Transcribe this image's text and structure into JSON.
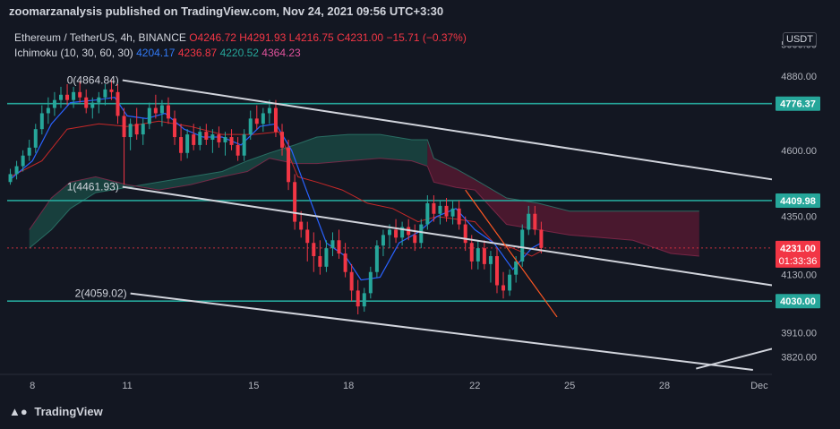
{
  "header": {
    "publisher_text": "zoomarzanalysis published on TradingView.com, Nov 24, 2021 09:56 UTC+3:30"
  },
  "legend": {
    "symbol": "Ethereum / TetherUS, 4h, BINANCE",
    "open": "O4246.72",
    "high": "H4291.93",
    "low": "L4216.75",
    "close": "C4231.00",
    "change": "−15.71 (−0.37%)",
    "indicator": "Ichimoku (10, 30, 60, 30)",
    "ind_v1": "4204.17",
    "ind_v2": "4236.87",
    "ind_v3": "4220.52",
    "ind_v4": "4364.23"
  },
  "axis": {
    "currency_badge": "USDT"
  },
  "footer": {
    "logo_text": "TradingView"
  },
  "colors": {
    "background": "#131722",
    "up": "#26a69a",
    "down": "#f23645",
    "tenkan": "#2962ff",
    "kijun": "#b71c1c",
    "cloud_bull": "#1b4d47",
    "cloud_bear": "#5c1a33",
    "level_line": "#26a69a",
    "channel_line": "#d1d4dc",
    "current_price": "#f23645"
  },
  "chart_data": {
    "type": "candlestick",
    "ylim": [
      3760,
      5080
    ],
    "y_ticks": [
      "5000.00",
      "4880.00",
      "4600.00",
      "4350.00",
      "4130.00",
      "3910.00",
      "3820.00"
    ],
    "x_ticks": [
      "8",
      "11",
      "15",
      "18",
      "22",
      "25",
      "28",
      "Dec"
    ],
    "x_tick_days": [
      8,
      11,
      15,
      18,
      22,
      25,
      28,
      31
    ],
    "x_range_days": [
      7.2,
      31.4
    ],
    "horizontal_levels": [
      4776.37,
      4409.98,
      4030.0
    ],
    "level_labels": [
      "4776.37",
      "4409.98",
      "4030.00"
    ],
    "current_price": 4231.0,
    "current_price_label": "4231.00",
    "countdown_label": "01:33:36",
    "fib_labels": [
      {
        "text": "0(4864.84)",
        "day": 10.85,
        "price": 4864.84
      },
      {
        "text": "1(4461.93)",
        "day": 10.85,
        "price": 4461.93
      },
      {
        "text": "2(4059.02)",
        "day": 11.1,
        "price": 4059.02
      }
    ],
    "channel_lines": [
      {
        "from": [
          10.85,
          4864.84
        ],
        "to": [
          31.4,
          4490
        ]
      },
      {
        "from": [
          10.85,
          4461.93
        ],
        "to": [
          31.4,
          4090
        ]
      },
      {
        "from": [
          11.1,
          4059.02
        ],
        "to": [
          30.8,
          3770
        ]
      },
      {
        "from": [
          29.0,
          3775
        ],
        "to": [
          31.4,
          3850
        ]
      }
    ],
    "orange_line": {
      "from": [
        21.7,
        4450
      ],
      "to": [
        24.6,
        3970
      ]
    },
    "candles": [
      {
        "day": 7.3,
        "o": 4480,
        "h": 4530,
        "l": 4470,
        "c": 4510
      },
      {
        "day": 7.5,
        "o": 4510,
        "h": 4560,
        "l": 4490,
        "c": 4540
      },
      {
        "day": 7.7,
        "o": 4540,
        "h": 4600,
        "l": 4520,
        "c": 4580
      },
      {
        "day": 7.9,
        "o": 4580,
        "h": 4640,
        "l": 4560,
        "c": 4610
      },
      {
        "day": 8.1,
        "o": 4610,
        "h": 4700,
        "l": 4590,
        "c": 4680
      },
      {
        "day": 8.3,
        "o": 4680,
        "h": 4770,
        "l": 4660,
        "c": 4740
      },
      {
        "day": 8.5,
        "o": 4740,
        "h": 4800,
        "l": 4700,
        "c": 4760
      },
      {
        "day": 8.7,
        "o": 4760,
        "h": 4820,
        "l": 4730,
        "c": 4790
      },
      {
        "day": 8.9,
        "o": 4790,
        "h": 4840,
        "l": 4760,
        "c": 4810
      },
      {
        "day": 9.1,
        "o": 4810,
        "h": 4850,
        "l": 4770,
        "c": 4790
      },
      {
        "day": 9.3,
        "o": 4790,
        "h": 4840,
        "l": 4760,
        "c": 4820
      },
      {
        "day": 9.5,
        "o": 4820,
        "h": 4860,
        "l": 4780,
        "c": 4800
      },
      {
        "day": 9.7,
        "o": 4800,
        "h": 4830,
        "l": 4740,
        "c": 4760
      },
      {
        "day": 9.9,
        "o": 4760,
        "h": 4800,
        "l": 4720,
        "c": 4780
      },
      {
        "day": 10.1,
        "o": 4780,
        "h": 4820,
        "l": 4740,
        "c": 4800
      },
      {
        "day": 10.3,
        "o": 4800,
        "h": 4850,
        "l": 4770,
        "c": 4830
      },
      {
        "day": 10.5,
        "o": 4830,
        "h": 4865,
        "l": 4790,
        "c": 4820
      },
      {
        "day": 10.7,
        "o": 4820,
        "h": 4850,
        "l": 4700,
        "c": 4730
      },
      {
        "day": 10.9,
        "o": 4730,
        "h": 4760,
        "l": 4470,
        "c": 4650
      },
      {
        "day": 11.1,
        "o": 4650,
        "h": 4720,
        "l": 4600,
        "c": 4700
      },
      {
        "day": 11.3,
        "o": 4700,
        "h": 4760,
        "l": 4640,
        "c": 4660
      },
      {
        "day": 11.5,
        "o": 4660,
        "h": 4720,
        "l": 4620,
        "c": 4700
      },
      {
        "day": 11.7,
        "o": 4700,
        "h": 4780,
        "l": 4680,
        "c": 4760
      },
      {
        "day": 11.9,
        "o": 4760,
        "h": 4810,
        "l": 4720,
        "c": 4740
      },
      {
        "day": 12.1,
        "o": 4740,
        "h": 4790,
        "l": 4690,
        "c": 4770
      },
      {
        "day": 12.3,
        "o": 4770,
        "h": 4800,
        "l": 4700,
        "c": 4720
      },
      {
        "day": 12.5,
        "o": 4720,
        "h": 4750,
        "l": 4620,
        "c": 4650
      },
      {
        "day": 12.7,
        "o": 4650,
        "h": 4700,
        "l": 4560,
        "c": 4590
      },
      {
        "day": 12.9,
        "o": 4590,
        "h": 4680,
        "l": 4570,
        "c": 4660
      },
      {
        "day": 13.1,
        "o": 4660,
        "h": 4700,
        "l": 4600,
        "c": 4620
      },
      {
        "day": 13.3,
        "o": 4620,
        "h": 4690,
        "l": 4600,
        "c": 4670
      },
      {
        "day": 13.5,
        "o": 4670,
        "h": 4700,
        "l": 4620,
        "c": 4640
      },
      {
        "day": 13.7,
        "o": 4640,
        "h": 4680,
        "l": 4590,
        "c": 4660
      },
      {
        "day": 13.9,
        "o": 4660,
        "h": 4690,
        "l": 4610,
        "c": 4630
      },
      {
        "day": 14.1,
        "o": 4630,
        "h": 4670,
        "l": 4580,
        "c": 4650
      },
      {
        "day": 14.3,
        "o": 4650,
        "h": 4680,
        "l": 4600,
        "c": 4620
      },
      {
        "day": 14.5,
        "o": 4620,
        "h": 4650,
        "l": 4560,
        "c": 4580
      },
      {
        "day": 14.7,
        "o": 4580,
        "h": 4680,
        "l": 4560,
        "c": 4660
      },
      {
        "day": 14.9,
        "o": 4660,
        "h": 4750,
        "l": 4640,
        "c": 4720
      },
      {
        "day": 15.1,
        "o": 4720,
        "h": 4770,
        "l": 4680,
        "c": 4700
      },
      {
        "day": 15.3,
        "o": 4700,
        "h": 4760,
        "l": 4670,
        "c": 4740
      },
      {
        "day": 15.5,
        "o": 4740,
        "h": 4790,
        "l": 4700,
        "c": 4760
      },
      {
        "day": 15.7,
        "o": 4760,
        "h": 4790,
        "l": 4650,
        "c": 4670
      },
      {
        "day": 15.9,
        "o": 4670,
        "h": 4700,
        "l": 4580,
        "c": 4610
      },
      {
        "day": 16.1,
        "o": 4610,
        "h": 4640,
        "l": 4450,
        "c": 4480
      },
      {
        "day": 16.3,
        "o": 4480,
        "h": 4510,
        "l": 4300,
        "c": 4330
      },
      {
        "day": 16.5,
        "o": 4330,
        "h": 4370,
        "l": 4270,
        "c": 4300
      },
      {
        "day": 16.7,
        "o": 4300,
        "h": 4330,
        "l": 4180,
        "c": 4250
      },
      {
        "day": 16.9,
        "o": 4250,
        "h": 4290,
        "l": 4140,
        "c": 4200
      },
      {
        "day": 17.1,
        "o": 4200,
        "h": 4260,
        "l": 4130,
        "c": 4160
      },
      {
        "day": 17.3,
        "o": 4160,
        "h": 4260,
        "l": 4140,
        "c": 4230
      },
      {
        "day": 17.5,
        "o": 4230,
        "h": 4290,
        "l": 4200,
        "c": 4260
      },
      {
        "day": 17.7,
        "o": 4260,
        "h": 4300,
        "l": 4190,
        "c": 4210
      },
      {
        "day": 17.9,
        "o": 4210,
        "h": 4250,
        "l": 4120,
        "c": 4140
      },
      {
        "day": 18.1,
        "o": 4140,
        "h": 4170,
        "l": 4030,
        "c": 4070
      },
      {
        "day": 18.3,
        "o": 4070,
        "h": 4110,
        "l": 3980,
        "c": 4010
      },
      {
        "day": 18.5,
        "o": 4010,
        "h": 4080,
        "l": 3990,
        "c": 4060
      },
      {
        "day": 18.7,
        "o": 4060,
        "h": 4160,
        "l": 4040,
        "c": 4140
      },
      {
        "day": 18.9,
        "o": 4140,
        "h": 4260,
        "l": 4120,
        "c": 4240
      },
      {
        "day": 19.1,
        "o": 4240,
        "h": 4300,
        "l": 4200,
        "c": 4280
      },
      {
        "day": 19.3,
        "o": 4280,
        "h": 4320,
        "l": 4230,
        "c": 4300
      },
      {
        "day": 19.5,
        "o": 4300,
        "h": 4340,
        "l": 4250,
        "c": 4270
      },
      {
        "day": 19.7,
        "o": 4270,
        "h": 4330,
        "l": 4240,
        "c": 4310
      },
      {
        "day": 19.9,
        "o": 4310,
        "h": 4340,
        "l": 4260,
        "c": 4280
      },
      {
        "day": 20.1,
        "o": 4280,
        "h": 4320,
        "l": 4220,
        "c": 4250
      },
      {
        "day": 20.3,
        "o": 4250,
        "h": 4340,
        "l": 4230,
        "c": 4320
      },
      {
        "day": 20.5,
        "o": 4320,
        "h": 4430,
        "l": 4300,
        "c": 4400
      },
      {
        "day": 20.7,
        "o": 4400,
        "h": 4430,
        "l": 4330,
        "c": 4360
      },
      {
        "day": 20.9,
        "o": 4360,
        "h": 4410,
        "l": 4320,
        "c": 4390
      },
      {
        "day": 21.1,
        "o": 4390,
        "h": 4420,
        "l": 4330,
        "c": 4350
      },
      {
        "day": 21.3,
        "o": 4350,
        "h": 4410,
        "l": 4320,
        "c": 4380
      },
      {
        "day": 21.5,
        "o": 4380,
        "h": 4410,
        "l": 4300,
        "c": 4320
      },
      {
        "day": 21.7,
        "o": 4320,
        "h": 4350,
        "l": 4220,
        "c": 4250
      },
      {
        "day": 21.9,
        "o": 4250,
        "h": 4280,
        "l": 4150,
        "c": 4180
      },
      {
        "day": 22.1,
        "o": 4180,
        "h": 4260,
        "l": 4150,
        "c": 4230
      },
      {
        "day": 22.3,
        "o": 4230,
        "h": 4260,
        "l": 4150,
        "c": 4170
      },
      {
        "day": 22.5,
        "o": 4170,
        "h": 4220,
        "l": 4100,
        "c": 4200
      },
      {
        "day": 22.7,
        "o": 4200,
        "h": 4230,
        "l": 4060,
        "c": 4090
      },
      {
        "day": 22.9,
        "o": 4090,
        "h": 4140,
        "l": 4040,
        "c": 4070
      },
      {
        "day": 23.1,
        "o": 4070,
        "h": 4150,
        "l": 4050,
        "c": 4130
      },
      {
        "day": 23.3,
        "o": 4130,
        "h": 4200,
        "l": 4100,
        "c": 4180
      },
      {
        "day": 23.5,
        "o": 4180,
        "h": 4320,
        "l": 4160,
        "c": 4300
      },
      {
        "day": 23.7,
        "o": 4300,
        "h": 4390,
        "l": 4280,
        "c": 4360
      },
      {
        "day": 23.9,
        "o": 4360,
        "h": 4390,
        "l": 4280,
        "c": 4300
      },
      {
        "day": 24.1,
        "o": 4300,
        "h": 4330,
        "l": 4210,
        "c": 4231
      }
    ],
    "tenkan": [
      [
        7.3,
        4490
      ],
      [
        8.0,
        4560
      ],
      [
        8.6,
        4700
      ],
      [
        9.2,
        4780
      ],
      [
        10.0,
        4790
      ],
      [
        10.6,
        4800
      ],
      [
        11.0,
        4730
      ],
      [
        11.6,
        4720
      ],
      [
        12.2,
        4740
      ],
      [
        12.8,
        4680
      ],
      [
        13.4,
        4650
      ],
      [
        14.0,
        4650
      ],
      [
        14.6,
        4620
      ],
      [
        15.2,
        4690
      ],
      [
        15.7,
        4700
      ],
      [
        16.2,
        4600
      ],
      [
        16.7,
        4440
      ],
      [
        17.3,
        4250
      ],
      [
        17.9,
        4200
      ],
      [
        18.4,
        4110
      ],
      [
        19.0,
        4120
      ],
      [
        19.6,
        4250
      ],
      [
        20.2,
        4290
      ],
      [
        20.8,
        4350
      ],
      [
        21.4,
        4380
      ],
      [
        22.0,
        4300
      ],
      [
        22.6,
        4250
      ],
      [
        23.2,
        4150
      ],
      [
        23.8,
        4230
      ],
      [
        24.1,
        4250
      ]
    ],
    "kijun": [
      [
        7.3,
        4500
      ],
      [
        8.3,
        4560
      ],
      [
        9.1,
        4680
      ],
      [
        10.1,
        4700
      ],
      [
        11.0,
        4690
      ],
      [
        12.0,
        4710
      ],
      [
        13.0,
        4690
      ],
      [
        14.0,
        4660
      ],
      [
        15.0,
        4660
      ],
      [
        15.8,
        4670
      ],
      [
        16.4,
        4500
      ],
      [
        17.0,
        4480
      ],
      [
        17.8,
        4450
      ],
      [
        18.6,
        4400
      ],
      [
        19.4,
        4380
      ],
      [
        20.2,
        4330
      ],
      [
        20.8,
        4350
      ],
      [
        21.4,
        4340
      ],
      [
        22.0,
        4330
      ],
      [
        22.6,
        4250
      ],
      [
        23.2,
        4230
      ],
      [
        23.8,
        4200
      ],
      [
        24.1,
        4220
      ]
    ],
    "cloud_span_a": [
      [
        7.9,
        4230
      ],
      [
        8.6,
        4300
      ],
      [
        9.2,
        4380
      ],
      [
        10.0,
        4440
      ],
      [
        11.0,
        4460
      ],
      [
        12.0,
        4480
      ],
      [
        13.0,
        4500
      ],
      [
        14.0,
        4520
      ],
      [
        14.8,
        4560
      ],
      [
        15.5,
        4590
      ],
      [
        16.3,
        4620
      ],
      [
        17.0,
        4650
      ],
      [
        18.0,
        4660
      ],
      [
        19.0,
        4660
      ],
      [
        20.0,
        4640
      ],
      [
        20.5,
        4640
      ],
      [
        20.7,
        4570
      ],
      [
        21.4,
        4530
      ],
      [
        22.0,
        4490
      ],
      [
        23.0,
        4420
      ],
      [
        24.0,
        4400
      ],
      [
        25.0,
        4370
      ],
      [
        26.0,
        4370
      ],
      [
        27.0,
        4370
      ],
      [
        28.2,
        4370
      ],
      [
        29.1,
        4370
      ]
    ],
    "cloud_span_b": [
      [
        7.9,
        4300
      ],
      [
        8.6,
        4420
      ],
      [
        9.2,
        4480
      ],
      [
        10.0,
        4500
      ],
      [
        11.0,
        4470
      ],
      [
        12.0,
        4450
      ],
      [
        13.0,
        4470
      ],
      [
        14.0,
        4500
      ],
      [
        14.8,
        4520
      ],
      [
        15.5,
        4570
      ],
      [
        16.3,
        4550
      ],
      [
        17.0,
        4550
      ],
      [
        18.0,
        4560
      ],
      [
        19.0,
        4570
      ],
      [
        20.0,
        4560
      ],
      [
        20.5,
        4540
      ],
      [
        20.7,
        4480
      ],
      [
        21.4,
        4460
      ],
      [
        22.0,
        4450
      ],
      [
        23.0,
        4320
      ],
      [
        24.0,
        4300
      ],
      [
        25.0,
        4280
      ],
      [
        26.0,
        4270
      ],
      [
        27.0,
        4260
      ],
      [
        28.2,
        4210
      ],
      [
        29.1,
        4200
      ]
    ]
  }
}
